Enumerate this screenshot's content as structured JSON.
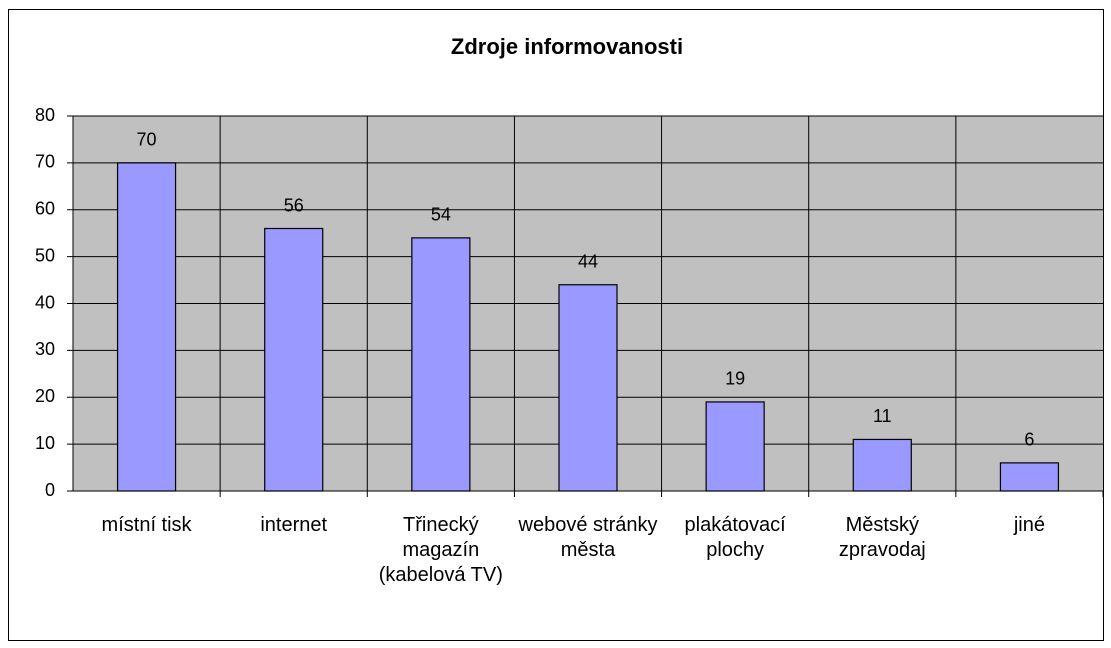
{
  "chart_data": {
    "type": "bar",
    "title": "Zdroje informovanosti",
    "categories": [
      "místní tisk",
      "internet",
      "Třinecký magazín (kabelová TV)",
      "webové stránky města",
      "plakátovací plochy",
      "Městský zpravodaj",
      "jiné"
    ],
    "values": [
      70,
      56,
      54,
      44,
      19,
      11,
      6
    ],
    "color": "#9999ff",
    "plot_background": "#c0c0c0",
    "ylim": [
      0,
      80
    ],
    "yticks": [
      0,
      10,
      20,
      30,
      40,
      50,
      60,
      70,
      80
    ],
    "grid": true
  }
}
